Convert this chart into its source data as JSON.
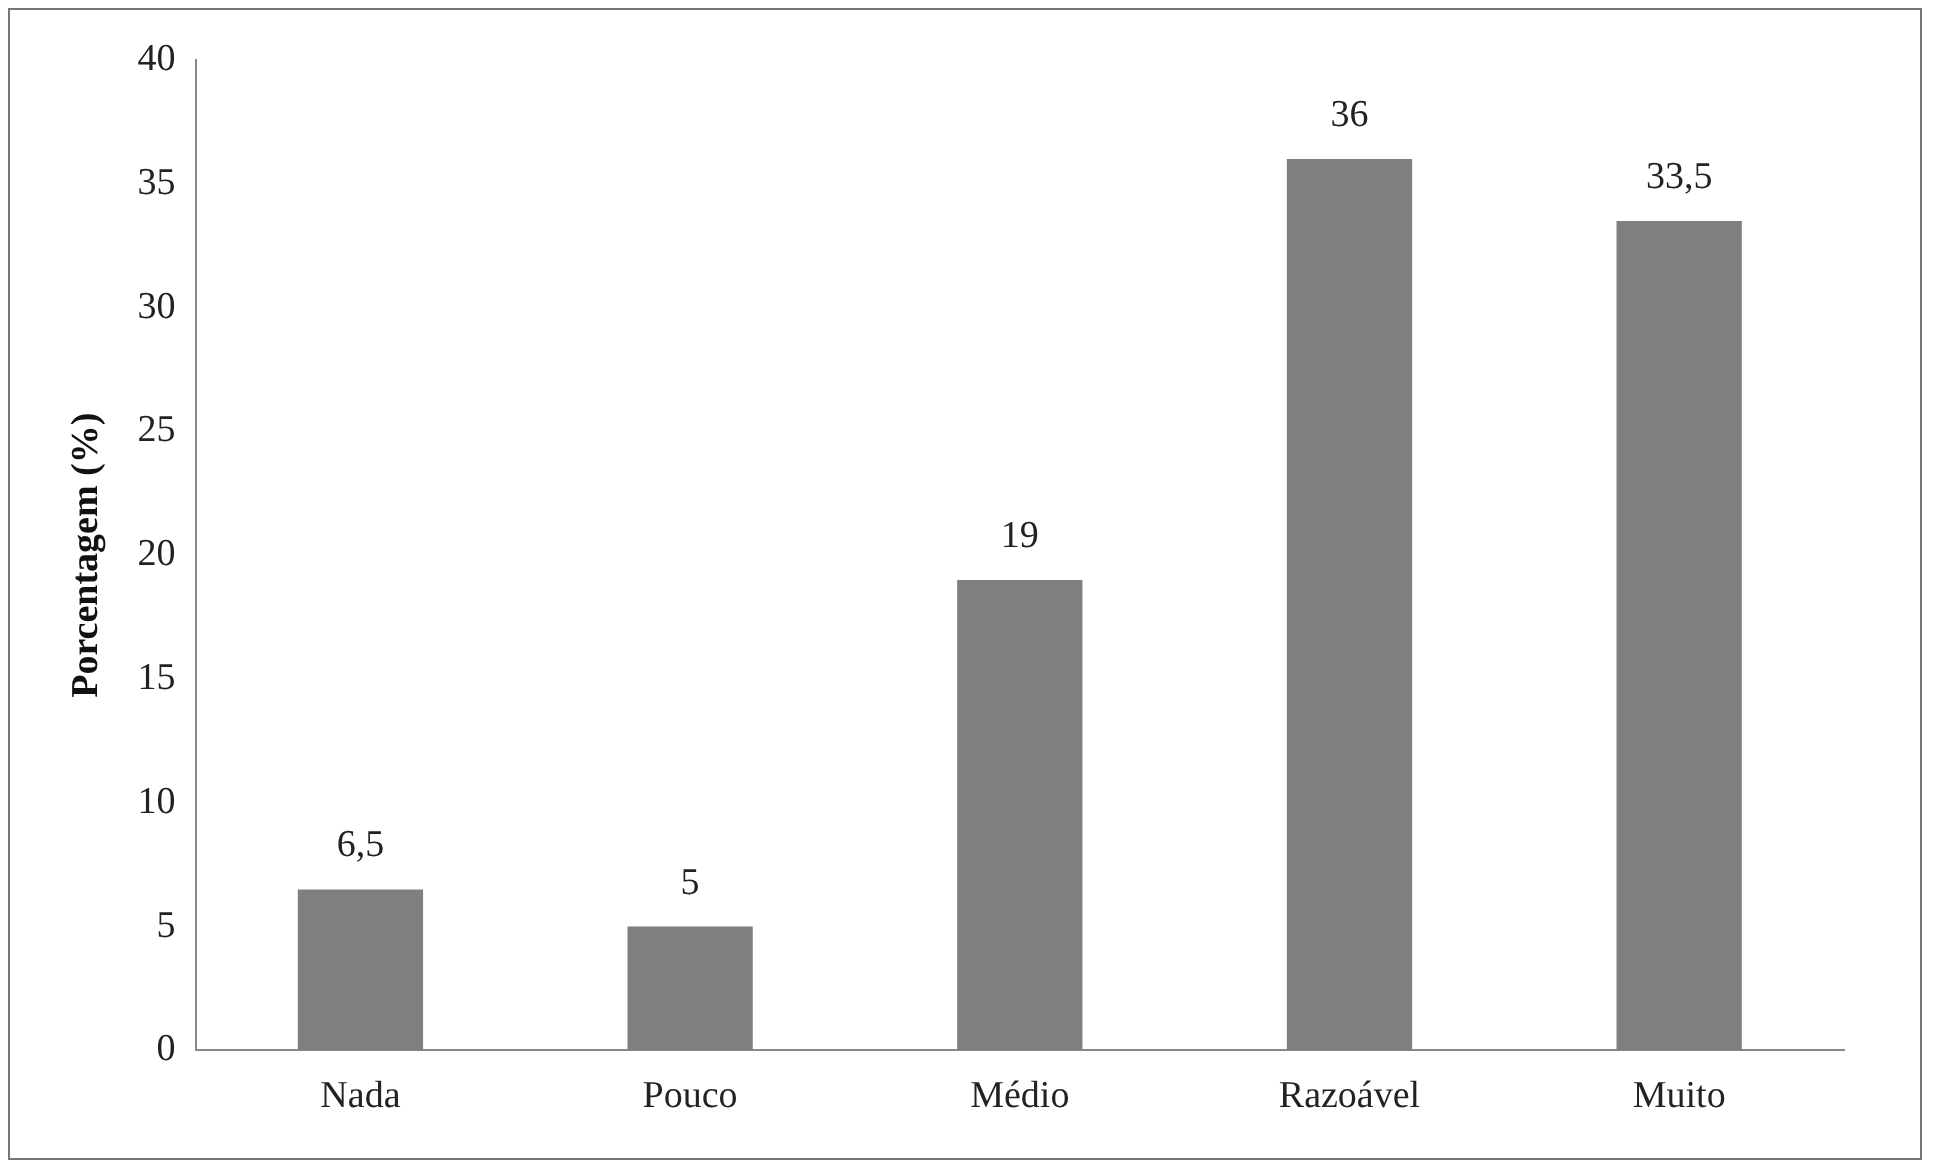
{
  "chart_data": {
    "type": "bar",
    "ylabel": "Porcentagem (%)",
    "categories": [
      "Nada",
      "Pouco",
      "Médio",
      "Razoável",
      "Muito"
    ],
    "values": [
      6.5,
      5,
      19,
      36,
      33.5
    ],
    "value_labels": [
      "6,5",
      "5",
      "19",
      "36",
      "33,5"
    ],
    "color": "#7f7f7f",
    "ylim": [
      0,
      40
    ],
    "yticks": [
      0,
      5,
      10,
      15,
      20,
      25,
      30,
      35,
      40
    ],
    "grid": false,
    "legend": false
  }
}
